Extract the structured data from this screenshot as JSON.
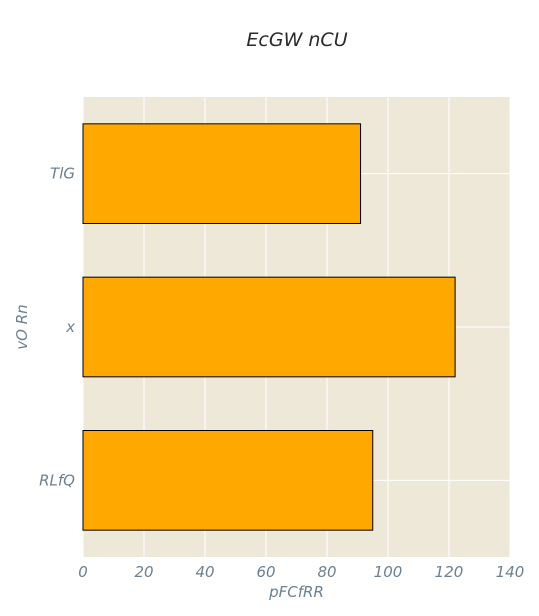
{
  "chart_data": {
    "type": "bar",
    "orientation": "horizontal",
    "title": "EcGW nCU",
    "xlabel": "pFCfRR",
    "ylabel": "vO Rn",
    "categories": [
      "TlG",
      "x",
      "RLfQ"
    ],
    "values": [
      91,
      122,
      95
    ],
    "xlim": [
      0,
      140
    ],
    "xticks": [
      "0",
      "20",
      "40",
      "60",
      "80",
      "100",
      "120",
      "140"
    ],
    "grid": true,
    "legend": "none",
    "colors": {
      "bar": "#ffa800",
      "bar_stroke": "#000000",
      "plot_bg": "#ede8d8",
      "grid": "#ffffff"
    }
  }
}
